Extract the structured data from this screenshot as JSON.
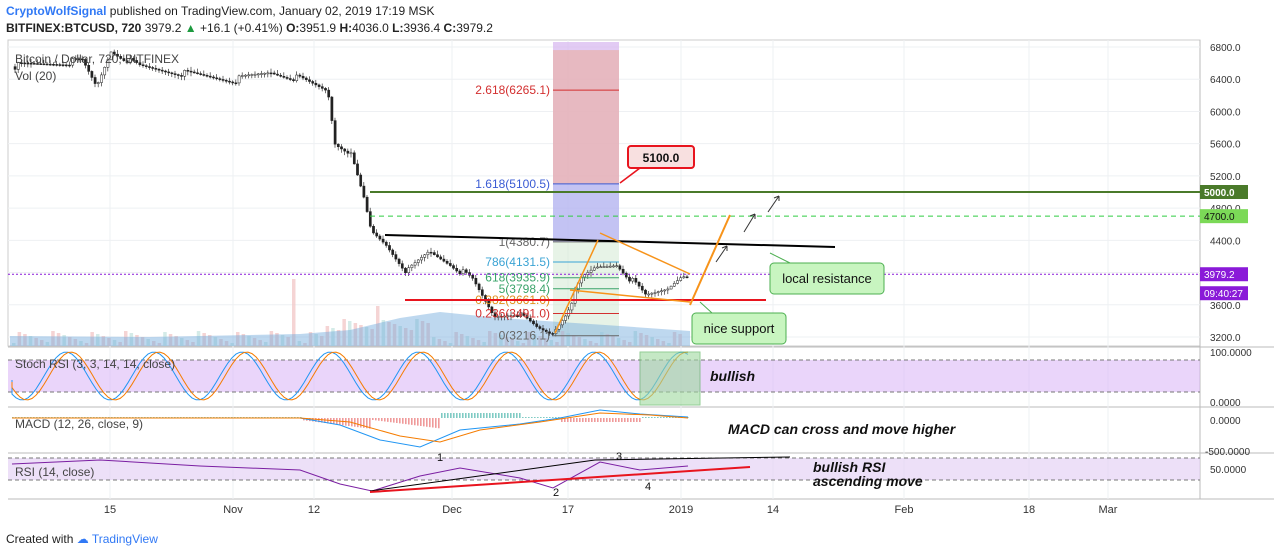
{
  "header": {
    "author": "CryptoWolfSignal",
    "published_text": "published on TradingView.com, January 02, 2019 17:19 MSK",
    "symbol": "BITFINEX:BTCUSD, 720",
    "last_price": "3979.2",
    "change": "+16.1 (+0.41%)",
    "open": "3951.9",
    "high": "4036.0",
    "low": "3936.4",
    "close": "3979.2"
  },
  "footer": {
    "created_with": "Created with",
    "brand": "TradingView"
  },
  "colors": {
    "up": "#26a69a",
    "down": "#ef5350",
    "resistance": "#000000",
    "support": "#e8141e",
    "level_5000": "#4a7a2a",
    "fib_high": "#e8b4b4",
    "fib_low": "#b4b4f0",
    "stoch_band": "#d9b3f5",
    "rsi_band": "#e6d3f5",
    "orange": "#f7931a",
    "macd_line": "#2196f3",
    "signal_line": "#f57c00",
    "callout_green": "#c8f5c0",
    "callout_red": "#e8141e",
    "price_tag": "#8a1ad8"
  },
  "chart_data": [
    {
      "type": "candlestick",
      "title": "Bitcoin / Dollar, 720, BITFINEX",
      "volume_label": "Vol (20)",
      "y_ticks": [
        6800,
        6400,
        6000,
        5600,
        5200,
        4800,
        4400,
        4000,
        3600,
        3200
      ],
      "y_tick_labels": [
        "6800.0",
        "6400.0",
        "6000.0",
        "5600.0",
        "5200.0",
        "4800.0",
        "4400.0",
        "4000.0",
        "3600.0",
        "3200.0"
      ],
      "ylim": [
        3100,
        6900
      ],
      "x_tick_labels": [
        "15",
        "Nov",
        "12",
        "Dec",
        "17",
        "2019",
        "14",
        "Feb",
        "18",
        "Mar"
      ],
      "price_path": [
        [
          "Oct 8",
          6600
        ],
        [
          "Oct 11",
          6620
        ],
        [
          "Oct 13",
          6300
        ],
        [
          "Oct 15",
          6750
        ],
        [
          "Oct 19",
          6550
        ],
        [
          "Oct 24",
          6480
        ],
        [
          "Nov 1",
          6380
        ],
        [
          "Nov 6",
          6480
        ],
        [
          "Nov 10",
          6400
        ],
        [
          "Nov 14",
          6250
        ],
        [
          "Nov 15",
          5600
        ],
        [
          "Nov 17",
          5500
        ],
        [
          "Nov 19",
          4900
        ],
        [
          "Nov 20",
          4500
        ],
        [
          "Nov 22",
          4350
        ],
        [
          "Nov 25",
          4000
        ],
        [
          "Nov 28",
          4250
        ],
        [
          "Dec 1",
          4100
        ],
        [
          "Dec 4",
          3900
        ],
        [
          "Dec 7",
          3450
        ],
        [
          "Dec 10",
          3500
        ],
        [
          "Dec 13",
          3300
        ],
        [
          "Dec 15",
          3230
        ],
        [
          "Dec 17",
          3500
        ],
        [
          "Dec 19",
          3900
        ],
        [
          "Dec 21",
          4050
        ],
        [
          "Dec 24",
          4100
        ],
        [
          "Dec 26",
          3900
        ],
        [
          "Dec 28",
          3700
        ],
        [
          "Dec 31",
          3800
        ],
        [
          "Jan 2",
          3979
        ]
      ],
      "fib_levels": [
        {
          "label": "2.618(6265.1)",
          "value": 6265.1
        },
        {
          "label": "1.618(5100.5)",
          "value": 5100.5
        },
        {
          "label": "1(4380.7)",
          "value": 4380.7
        },
        {
          "label": "786(4131.5)",
          "value": 4131.5
        },
        {
          "label": "618(3935.9)",
          "value": 3935.9
        },
        {
          "label": "5(3798.4)",
          "value": 3798.4
        },
        {
          "label": "0.382(3661.0)",
          "value": 3661.0
        },
        {
          "label": "0.236(3491.0)",
          "value": 3491.0
        },
        {
          "label": "0(3216.1)",
          "value": 3216.1
        }
      ],
      "horizontal_levels": [
        {
          "label": "5000.0",
          "value": 5000
        },
        {
          "label": "4700.0",
          "value": 4700
        }
      ],
      "current_price": {
        "label": "3979.2",
        "time": "09:40:27"
      },
      "annotations": {
        "target": "5100.0",
        "resistance": "local resistance",
        "support": "nice support"
      }
    },
    {
      "type": "line",
      "title": "Stoch RSI (3, 3, 14, 14, close)",
      "y_tick_labels": [
        "100.0000",
        "0.0000"
      ],
      "ylim": [
        0,
        100
      ],
      "band": [
        20,
        80
      ],
      "annotation": "bullish"
    },
    {
      "type": "line",
      "title": "MACD (12, 26, close, 9)",
      "y_tick_labels": [
        "0.0000",
        "-500.0000"
      ],
      "annotation": "MACD can cross and move higher"
    },
    {
      "type": "line",
      "title": "RSI (14, close)",
      "y_tick_labels": [
        "50.0000"
      ],
      "band": [
        30,
        70
      ],
      "markers": [
        "1",
        "2",
        "3",
        "4"
      ],
      "annotation_line1": "bullish RSI",
      "annotation_line2": "ascending move"
    }
  ]
}
